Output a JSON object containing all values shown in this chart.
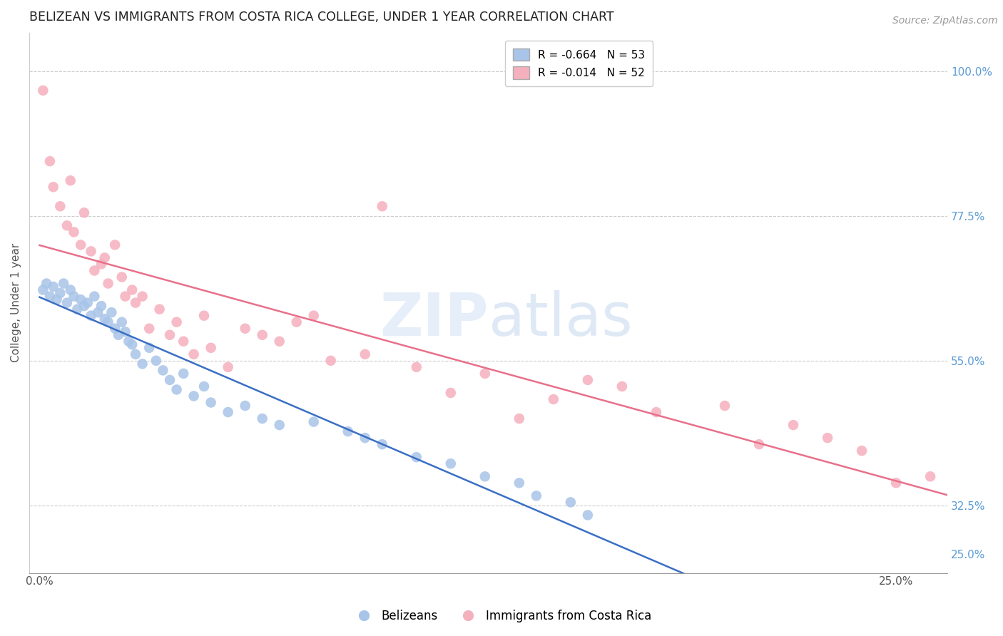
{
  "title": "BELIZEAN VS IMMIGRANTS FROM COSTA RICA COLLEGE, UNDER 1 YEAR CORRELATION CHART",
  "source": "Source: ZipAtlas.com",
  "xlabel_ticks": [
    "0.0%",
    "",
    "",
    "",
    "",
    "25.0%"
  ],
  "xlabel_vals": [
    0.0,
    0.05,
    0.1,
    0.15,
    0.2,
    0.25
  ],
  "ylabel": "College, Under 1 year",
  "ylabel_ticks_right": [
    "100.0%",
    "77.5%",
    "55.0%",
    "32.5%",
    "25.0%"
  ],
  "ylabel_vals_right": [
    1.0,
    0.775,
    0.55,
    0.325,
    0.25
  ],
  "grid_lines": [
    1.0,
    0.775,
    0.55,
    0.325
  ],
  "ylim": [
    0.22,
    1.06
  ],
  "xlim": [
    -0.003,
    0.265
  ],
  "R_blue": -0.664,
  "N_blue": 53,
  "R_pink": -0.014,
  "N_pink": 52,
  "blue_color": "#a8c4e8",
  "pink_color": "#f5b0be",
  "blue_line_color": "#3a6fc4",
  "pink_line_color": "#e8708a",
  "watermark_color": "#d8eaf8",
  "blue_scatter_x": [
    0.001,
    0.002,
    0.003,
    0.004,
    0.005,
    0.006,
    0.007,
    0.008,
    0.009,
    0.01,
    0.011,
    0.012,
    0.013,
    0.014,
    0.015,
    0.016,
    0.017,
    0.018,
    0.019,
    0.02,
    0.021,
    0.022,
    0.023,
    0.024,
    0.025,
    0.026,
    0.027,
    0.028,
    0.03,
    0.032,
    0.034,
    0.036,
    0.038,
    0.04,
    0.042,
    0.045,
    0.048,
    0.05,
    0.055,
    0.06,
    0.065,
    0.07,
    0.08,
    0.09,
    0.095,
    0.1,
    0.11,
    0.12,
    0.13,
    0.14,
    0.145,
    0.155,
    0.16
  ],
  "blue_scatter_y": [
    0.66,
    0.67,
    0.65,
    0.665,
    0.645,
    0.655,
    0.67,
    0.64,
    0.66,
    0.65,
    0.63,
    0.645,
    0.635,
    0.64,
    0.62,
    0.65,
    0.625,
    0.635,
    0.615,
    0.61,
    0.625,
    0.6,
    0.59,
    0.61,
    0.595,
    0.58,
    0.575,
    0.56,
    0.545,
    0.57,
    0.55,
    0.535,
    0.52,
    0.505,
    0.53,
    0.495,
    0.51,
    0.485,
    0.47,
    0.48,
    0.46,
    0.45,
    0.455,
    0.44,
    0.43,
    0.42,
    0.4,
    0.39,
    0.37,
    0.36,
    0.34,
    0.33,
    0.31
  ],
  "pink_scatter_x": [
    0.001,
    0.003,
    0.004,
    0.006,
    0.008,
    0.009,
    0.01,
    0.012,
    0.013,
    0.015,
    0.016,
    0.018,
    0.019,
    0.02,
    0.022,
    0.024,
    0.025,
    0.027,
    0.028,
    0.03,
    0.032,
    0.035,
    0.038,
    0.04,
    0.042,
    0.045,
    0.048,
    0.05,
    0.055,
    0.06,
    0.065,
    0.07,
    0.075,
    0.08,
    0.085,
    0.095,
    0.1,
    0.11,
    0.12,
    0.13,
    0.14,
    0.15,
    0.16,
    0.17,
    0.18,
    0.2,
    0.21,
    0.22,
    0.23,
    0.24,
    0.25,
    0.26
  ],
  "pink_scatter_y": [
    0.97,
    0.86,
    0.82,
    0.79,
    0.76,
    0.83,
    0.75,
    0.73,
    0.78,
    0.72,
    0.69,
    0.7,
    0.71,
    0.67,
    0.73,
    0.68,
    0.65,
    0.66,
    0.64,
    0.65,
    0.6,
    0.63,
    0.59,
    0.61,
    0.58,
    0.56,
    0.62,
    0.57,
    0.54,
    0.6,
    0.59,
    0.58,
    0.61,
    0.62,
    0.55,
    0.56,
    0.79,
    0.54,
    0.5,
    0.53,
    0.46,
    0.49,
    0.52,
    0.51,
    0.47,
    0.48,
    0.42,
    0.45,
    0.43,
    0.41,
    0.36,
    0.37
  ]
}
